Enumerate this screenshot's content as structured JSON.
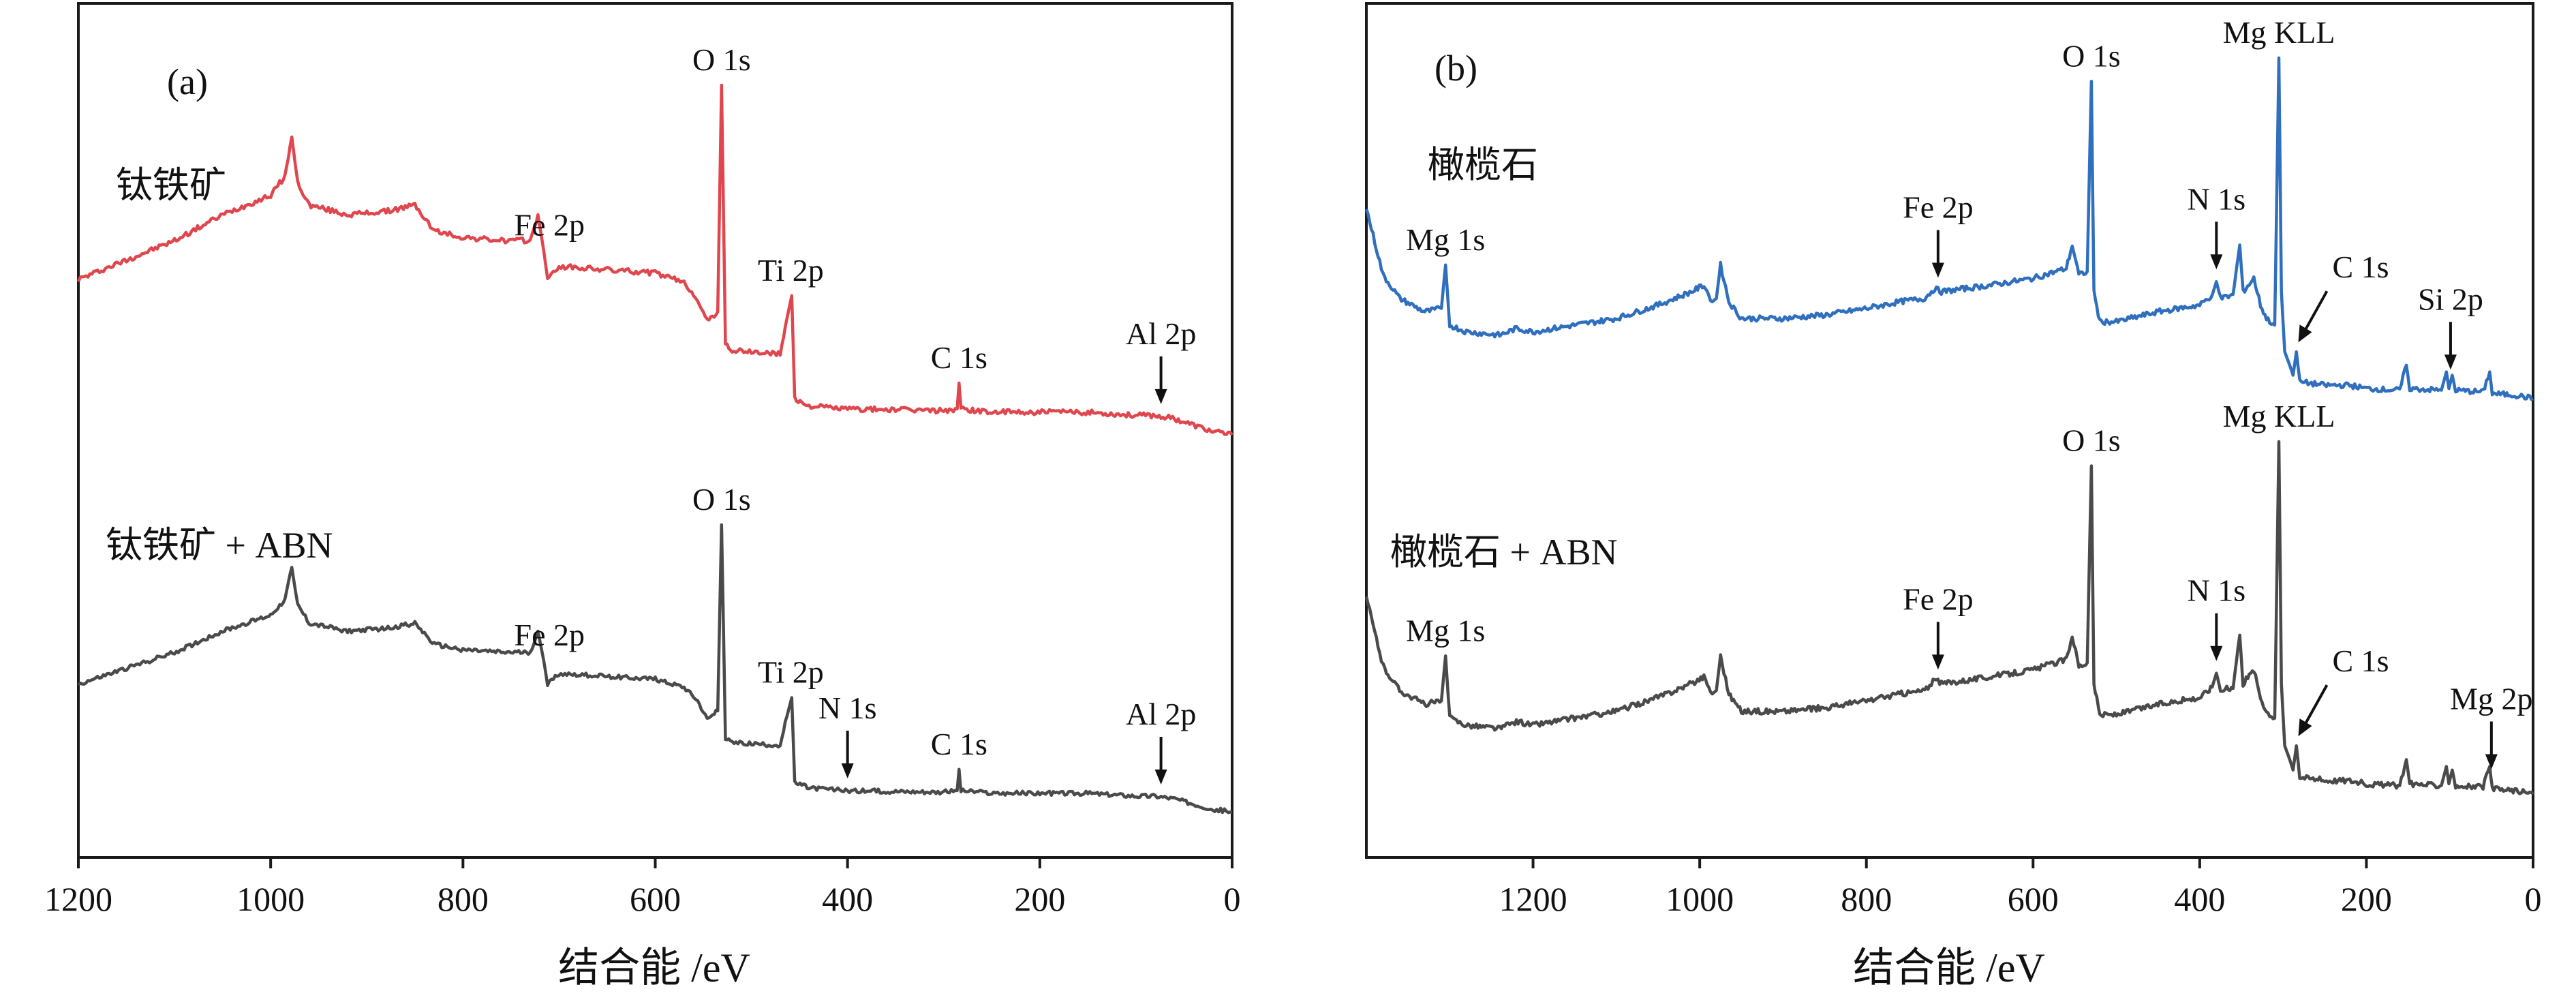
{
  "colors": {
    "red": "#e0464d",
    "blue": "#2f6fbd",
    "gray": "#4a4a4a",
    "axis": "#1a1a1a"
  },
  "chart_data": [
    {
      "type": "line",
      "panel_label": "(a)",
      "xlabel": "结合能 /eV",
      "ylabel": "",
      "x_reversed": true,
      "xlim": [
        1200,
        0
      ],
      "x_ticks": [
        1200,
        1000,
        800,
        600,
        400,
        200,
        0
      ],
      "grid": false,
      "series": [
        {
          "name": "钛铁矿",
          "color": "red",
          "points": [
            [
              1200,
              40
            ],
            [
              1150,
              46
            ],
            [
              1100,
              52
            ],
            [
              1050,
              60
            ],
            [
              1000,
              66
            ],
            [
              985,
              72
            ],
            [
              978,
              84
            ],
            [
              972,
              70
            ],
            [
              960,
              63
            ],
            [
              920,
              60
            ],
            [
              880,
              61
            ],
            [
              850,
              63
            ],
            [
              830,
              55
            ],
            [
              800,
              53
            ],
            [
              760,
              52
            ],
            [
              730,
              52
            ],
            [
              722,
              60
            ],
            [
              716,
              49
            ],
            [
              712,
              40
            ],
            [
              700,
              44
            ],
            [
              650,
              43
            ],
            [
              600,
              42
            ],
            [
              570,
              39
            ],
            [
              556,
              34
            ],
            [
              546,
              27
            ],
            [
              535,
              30
            ],
            [
              531,
              100
            ],
            [
              527,
              20
            ],
            [
              520,
              18
            ],
            [
              470,
              17
            ],
            [
              463,
              28
            ],
            [
              458,
              35
            ],
            [
              455,
              3
            ],
            [
              440,
              1
            ],
            [
              400,
              0
            ],
            [
              300,
              -0.5
            ],
            [
              286,
              0
            ],
            [
              284,
              8
            ],
            [
              282,
              0
            ],
            [
              250,
              -1
            ],
            [
              200,
              -1
            ],
            [
              150,
              -1
            ],
            [
              100,
              -2
            ],
            [
              80,
              -2
            ],
            [
              60,
              -3
            ],
            [
              40,
              -5
            ],
            [
              20,
              -7
            ],
            [
              0,
              -8
            ]
          ]
        },
        {
          "name": "钛铁矿 + ABN",
          "color": "gray",
          "points": [
            [
              1200,
              40
            ],
            [
              1150,
              46
            ],
            [
              1100,
              52
            ],
            [
              1050,
              60
            ],
            [
              1000,
              66
            ],
            [
              985,
              72
            ],
            [
              978,
              84
            ],
            [
              972,
              70
            ],
            [
              960,
              63
            ],
            [
              920,
              60
            ],
            [
              880,
              61
            ],
            [
              850,
              63
            ],
            [
              830,
              55
            ],
            [
              800,
              53
            ],
            [
              760,
              52
            ],
            [
              730,
              52
            ],
            [
              722,
              60
            ],
            [
              716,
              49
            ],
            [
              712,
              40
            ],
            [
              700,
              44
            ],
            [
              650,
              43
            ],
            [
              600,
              42
            ],
            [
              570,
              39
            ],
            [
              556,
              34
            ],
            [
              546,
              27
            ],
            [
              535,
              30
            ],
            [
              531,
              100
            ],
            [
              527,
              20
            ],
            [
              520,
              18
            ],
            [
              470,
              17
            ],
            [
              463,
              28
            ],
            [
              458,
              35
            ],
            [
              455,
              3
            ],
            [
              440,
              1
            ],
            [
              400,
              0
            ],
            [
              300,
              -0.5
            ],
            [
              286,
              0
            ],
            [
              284,
              8
            ],
            [
              282,
              0
            ],
            [
              250,
              -1
            ],
            [
              200,
              -1
            ],
            [
              150,
              -1
            ],
            [
              100,
              -2
            ],
            [
              80,
              -2
            ],
            [
              60,
              -3
            ],
            [
              40,
              -5
            ],
            [
              20,
              -7
            ],
            [
              0,
              -8
            ]
          ]
        }
      ],
      "annotations": [
        {
          "text": "Fe 2p",
          "series": 0,
          "x": 710
        },
        {
          "text": "O 1s",
          "series": 0,
          "x": 531
        },
        {
          "text": "Ti 2p",
          "series": 0,
          "x": 459
        },
        {
          "text": "C 1s",
          "series": 0,
          "x": 284
        },
        {
          "text": "Al 2p",
          "series": 0,
          "x": 74,
          "arrow": true
        },
        {
          "text": "Fe 2p",
          "series": 1,
          "x": 710
        },
        {
          "text": "O 1s",
          "series": 1,
          "x": 531
        },
        {
          "text": "Ti 2p",
          "series": 1,
          "x": 459
        },
        {
          "text": "N 1s",
          "series": 1,
          "x": 400,
          "arrow": true
        },
        {
          "text": "C 1s",
          "series": 1,
          "x": 284
        },
        {
          "text": "Al 2p",
          "series": 1,
          "x": 74,
          "arrow": true
        }
      ]
    },
    {
      "type": "line",
      "panel_label": "(b)",
      "xlabel": "结合能 /eV",
      "ylabel": "",
      "x_reversed": true,
      "xlim": [
        1400,
        0
      ],
      "x_ticks": [
        1200,
        1000,
        800,
        600,
        400,
        200,
        0
      ],
      "grid": false,
      "series": [
        {
          "name": "橄榄石",
          "color": "blue",
          "points": [
            [
              1400,
              55
            ],
            [
              1380,
              35
            ],
            [
              1360,
              28
            ],
            [
              1330,
              24
            ],
            [
              1310,
              25
            ],
            [
              1305,
              38
            ],
            [
              1300,
              20
            ],
            [
              1280,
              18
            ],
            [
              1240,
              17
            ],
            [
              1220,
              19
            ],
            [
              1200,
              18
            ],
            [
              1150,
              20
            ],
            [
              1100,
              22
            ],
            [
              1050,
              26
            ],
            [
              1010,
              30
            ],
            [
              995,
              32
            ],
            [
              985,
              27
            ],
            [
              980,
              28
            ],
            [
              975,
              38
            ],
            [
              965,
              27
            ],
            [
              950,
              22
            ],
            [
              900,
              22
            ],
            [
              850,
              23
            ],
            [
              800,
              25
            ],
            [
              760,
              27
            ],
            [
              730,
              28
            ],
            [
              718,
              31
            ],
            [
              710,
              30
            ],
            [
              650,
              32
            ],
            [
              600,
              34
            ],
            [
              560,
              37
            ],
            [
              553,
              44
            ],
            [
              545,
              35
            ],
            [
              535,
              36
            ],
            [
              530,
              93
            ],
            [
              527,
              30
            ],
            [
              520,
              21
            ],
            [
              500,
              21
            ],
            [
              450,
              24
            ],
            [
              400,
              26
            ],
            [
              385,
              29
            ],
            [
              380,
              33
            ],
            [
              375,
              28
            ],
            [
              360,
              29
            ],
            [
              352,
              44
            ],
            [
              348,
              30
            ],
            [
              335,
              34
            ],
            [
              327,
              26
            ],
            [
              320,
              22
            ],
            [
              310,
              20
            ],
            [
              305,
              100
            ],
            [
              302,
              30
            ],
            [
              298,
              12
            ],
            [
              292,
              8
            ],
            [
              288,
              5
            ],
            [
              284,
              12
            ],
            [
              280,
              3
            ],
            [
              250,
              2
            ],
            [
              220,
              2
            ],
            [
              200,
              1
            ],
            [
              160,
              0.5
            ],
            [
              152,
              8
            ],
            [
              148,
              1
            ],
            [
              110,
              0.5
            ],
            [
              104,
              6
            ],
            [
              101,
              1
            ],
            [
              97,
              5
            ],
            [
              93,
              0.5
            ],
            [
              60,
              0
            ],
            [
              52,
              6
            ],
            [
              49,
              -0.5
            ],
            [
              20,
              -1
            ],
            [
              0,
              -2
            ]
          ]
        },
        {
          "name": "橄榄石 + ABN",
          "color": "gray",
          "points": [
            [
              1400,
              55
            ],
            [
              1380,
              35
            ],
            [
              1360,
              28
            ],
            [
              1330,
              24
            ],
            [
              1310,
              25
            ],
            [
              1305,
              38
            ],
            [
              1300,
              20
            ],
            [
              1280,
              18
            ],
            [
              1240,
              17
            ],
            [
              1220,
              19
            ],
            [
              1200,
              18
            ],
            [
              1150,
              20
            ],
            [
              1100,
              22
            ],
            [
              1050,
              26
            ],
            [
              1010,
              30
            ],
            [
              995,
              32
            ],
            [
              985,
              27
            ],
            [
              980,
              28
            ],
            [
              975,
              38
            ],
            [
              965,
              27
            ],
            [
              950,
              22
            ],
            [
              900,
              22
            ],
            [
              850,
              23
            ],
            [
              800,
              25
            ],
            [
              760,
              27
            ],
            [
              730,
              28
            ],
            [
              718,
              31
            ],
            [
              710,
              30
            ],
            [
              650,
              32
            ],
            [
              600,
              34
            ],
            [
              560,
              37
            ],
            [
              553,
              44
            ],
            [
              545,
              35
            ],
            [
              535,
              36
            ],
            [
              530,
              93
            ],
            [
              527,
              30
            ],
            [
              520,
              21
            ],
            [
              500,
              21
            ],
            [
              450,
              24
            ],
            [
              400,
              26
            ],
            [
              385,
              29
            ],
            [
              380,
              33
            ],
            [
              375,
              28
            ],
            [
              360,
              29
            ],
            [
              352,
              44
            ],
            [
              348,
              30
            ],
            [
              335,
              34
            ],
            [
              327,
              26
            ],
            [
              320,
              22
            ],
            [
              310,
              20
            ],
            [
              305,
              100
            ],
            [
              302,
              30
            ],
            [
              298,
              12
            ],
            [
              292,
              8
            ],
            [
              288,
              5
            ],
            [
              284,
              12
            ],
            [
              280,
              3
            ],
            [
              250,
              2
            ],
            [
              220,
              2
            ],
            [
              200,
              1
            ],
            [
              160,
              0.5
            ],
            [
              152,
              8
            ],
            [
              148,
              1
            ],
            [
              110,
              0.5
            ],
            [
              104,
              6
            ],
            [
              101,
              1
            ],
            [
              97,
              5
            ],
            [
              93,
              0.5
            ],
            [
              60,
              0
            ],
            [
              52,
              6
            ],
            [
              49,
              -0.5
            ],
            [
              20,
              -1
            ],
            [
              0,
              -2
            ]
          ]
        }
      ],
      "annotations": [
        {
          "text": "Mg 1s",
          "series": 0,
          "x": 1305
        },
        {
          "text": "Fe 2p",
          "series": 0,
          "x": 714,
          "arrow": true
        },
        {
          "text": "O 1s",
          "series": 0,
          "x": 530
        },
        {
          "text": "N 1s",
          "series": 0,
          "x": 380,
          "arrow": true
        },
        {
          "text": "Mg KLL",
          "series": 0,
          "x": 305
        },
        {
          "text": "C 1s",
          "series": 0,
          "x": 285,
          "arrow": "diagonal"
        },
        {
          "text": "Si 2p",
          "series": 0,
          "x": 99,
          "arrow": true
        },
        {
          "text": "Mg 1s",
          "series": 1,
          "x": 1305
        },
        {
          "text": "Fe 2p",
          "series": 1,
          "x": 714,
          "arrow": true
        },
        {
          "text": "O 1s",
          "series": 1,
          "x": 530
        },
        {
          "text": "N 1s",
          "series": 1,
          "x": 380,
          "arrow": true
        },
        {
          "text": "Mg KLL",
          "series": 1,
          "x": 305
        },
        {
          "text": "C 1s",
          "series": 1,
          "x": 285,
          "arrow": "diagonal"
        },
        {
          "text": "Mg 2p",
          "series": 1,
          "x": 50,
          "arrow": true
        }
      ]
    }
  ]
}
